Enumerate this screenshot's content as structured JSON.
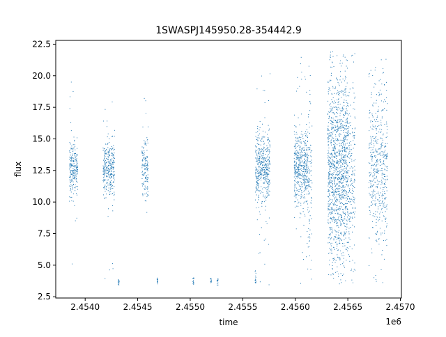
{
  "chart_data": {
    "type": "scatter",
    "title": "1SWASPJ145950.28-354442.9",
    "xlabel": "time",
    "ylabel": "flux",
    "x_offset_label": "1e6",
    "xlim": [
      2.45372,
      2.45701
    ],
    "ylim": [
      2.4,
      22.8
    ],
    "x_ticks": [
      2.454,
      2.4545,
      2.455,
      2.4555,
      2.456,
      2.4565,
      2.457
    ],
    "x_tick_labels": [
      "2.4540",
      "2.4545",
      "2.4550",
      "2.4555",
      "2.4560",
      "2.4565",
      "2.4570"
    ],
    "y_ticks": [
      2.5,
      5.0,
      7.5,
      10.0,
      12.5,
      15.0,
      17.5,
      20.0,
      22.5
    ],
    "y_tick_labels": [
      "2.5",
      "5.0",
      "7.5",
      "10.0",
      "12.5",
      "15.0",
      "17.5",
      "20.0",
      "22.5"
    ],
    "grid": false,
    "legend": "none",
    "point_color": "#1f77b4",
    "series": [
      {
        "segments": [
          {
            "x_start": 2.45385,
            "x_end": 2.45393,
            "center": 12.6,
            "spread": 1.1,
            "min": 3.4,
            "max": 20.0,
            "density": 0.35
          },
          {
            "x_start": 2.45417,
            "x_end": 2.45428,
            "center": 12.6,
            "spread": 1.1,
            "min": 3.4,
            "max": 18.3,
            "density": 0.35
          },
          {
            "x_start": 2.45454,
            "x_end": 2.4546,
            "center": 12.6,
            "spread": 1.2,
            "min": 6.0,
            "max": 19.6,
            "density": 0.3
          },
          {
            "x_start": 2.45562,
            "x_end": 2.45576,
            "center": 12.7,
            "spread": 1.4,
            "min": 3.4,
            "max": 20.4,
            "density": 0.4
          },
          {
            "x_start": 2.45599,
            "x_end": 2.45612,
            "center": 12.6,
            "spread": 1.5,
            "min": 3.5,
            "max": 21.5,
            "density": 0.45
          },
          {
            "x_start": 2.45612,
            "x_end": 2.45616,
            "center": 12.5,
            "spread": 3.0,
            "min": 3.5,
            "max": 21.8,
            "density": 0.3
          },
          {
            "x_start": 2.45631,
            "x_end": 2.4565,
            "center": 12.6,
            "spread": 3.6,
            "min": 3.3,
            "max": 21.9,
            "density": 0.8
          },
          {
            "x_start": 2.4565,
            "x_end": 2.45657,
            "center": 12.3,
            "spread": 3.2,
            "min": 3.3,
            "max": 21.8,
            "density": 0.35
          },
          {
            "x_start": 2.4567,
            "x_end": 2.45678,
            "center": 12.6,
            "spread": 3.0,
            "min": 3.3,
            "max": 21.9,
            "density": 0.35
          },
          {
            "x_start": 2.45678,
            "x_end": 2.45682,
            "center": 12.5,
            "spread": 3.2,
            "min": 3.4,
            "max": 21.5,
            "density": 0.3
          },
          {
            "x_start": 2.45682,
            "x_end": 2.45688,
            "center": 12.6,
            "spread": 3.1,
            "min": 3.3,
            "max": 21.9,
            "density": 0.35
          }
        ],
        "low_clusters": [
          {
            "x": 2.45432,
            "y_min": 3.4,
            "y_max": 4.0
          },
          {
            "x": 2.45469,
            "y_min": 3.5,
            "y_max": 4.0
          },
          {
            "x": 2.45503,
            "y_min": 3.4,
            "y_max": 4.0
          },
          {
            "x": 2.4552,
            "y_min": 3.5,
            "y_max": 4.0
          },
          {
            "x": 2.45526,
            "y_min": 3.4,
            "y_max": 4.0
          },
          {
            "x": 2.45562,
            "y_min": 3.4,
            "y_max": 4.6
          }
        ]
      }
    ]
  }
}
